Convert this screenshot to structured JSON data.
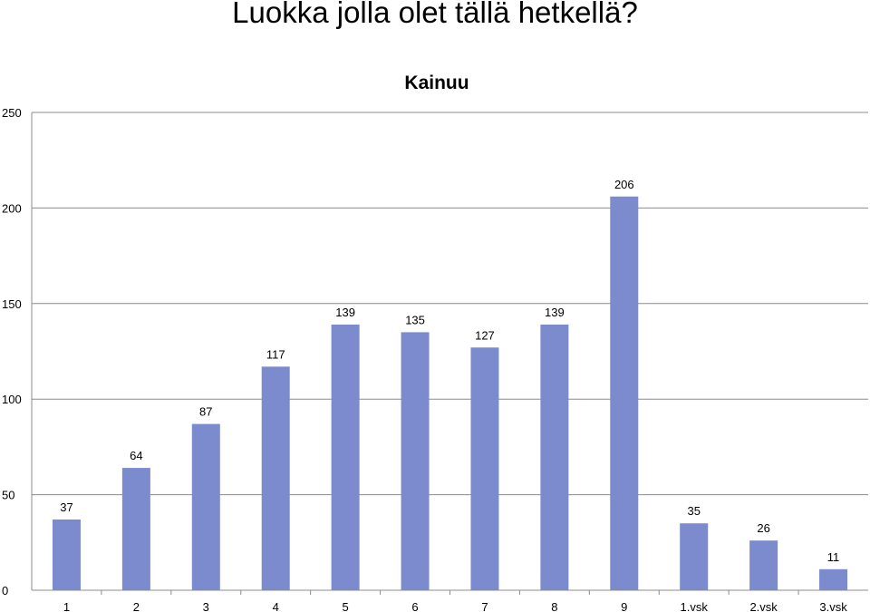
{
  "page": {
    "title": "Luokka jolla olet tällä hetkellä?"
  },
  "chart_data": {
    "type": "bar",
    "title": "Kainuu",
    "categories": [
      "1",
      "2",
      "3",
      "4",
      "5",
      "6",
      "7",
      "8",
      "9",
      "1.vsk",
      "2.vsk",
      "3.vsk"
    ],
    "values": [
      37,
      64,
      87,
      117,
      139,
      135,
      127,
      139,
      206,
      35,
      26,
      11
    ],
    "ylim": [
      0,
      250
    ],
    "yticks": [
      0,
      50,
      100,
      150,
      200,
      250
    ],
    "grid": true,
    "legend": "none",
    "bar_color": "#7B8BCE",
    "grid_color": "#8C8C8C"
  }
}
